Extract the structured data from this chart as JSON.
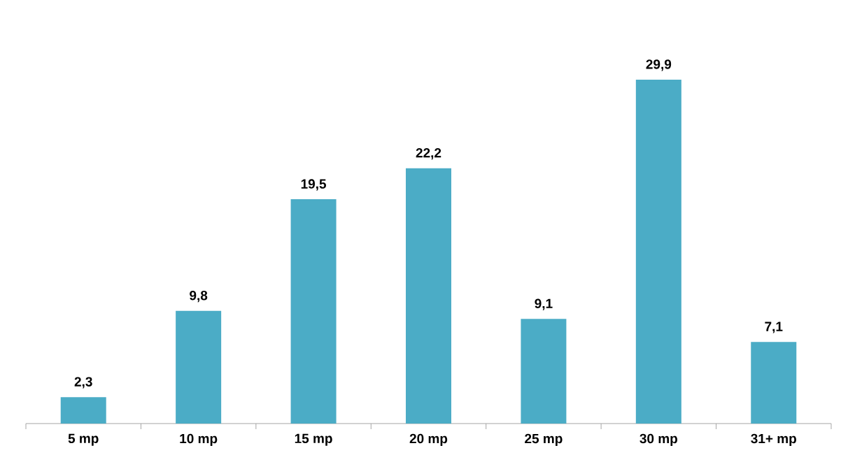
{
  "chart_data": {
    "type": "bar",
    "categories": [
      "5 mp",
      "10 mp",
      "15 mp",
      "20 mp",
      "25 mp",
      "30 mp",
      "31+ mp"
    ],
    "values": [
      2.3,
      9.8,
      19.5,
      22.2,
      9.1,
      29.9,
      7.1
    ],
    "value_labels": [
      "2,3",
      "9,8",
      "19,5",
      "22,2",
      "9,1",
      "29,9",
      "7,1"
    ],
    "color": "#4bacc6"
  }
}
